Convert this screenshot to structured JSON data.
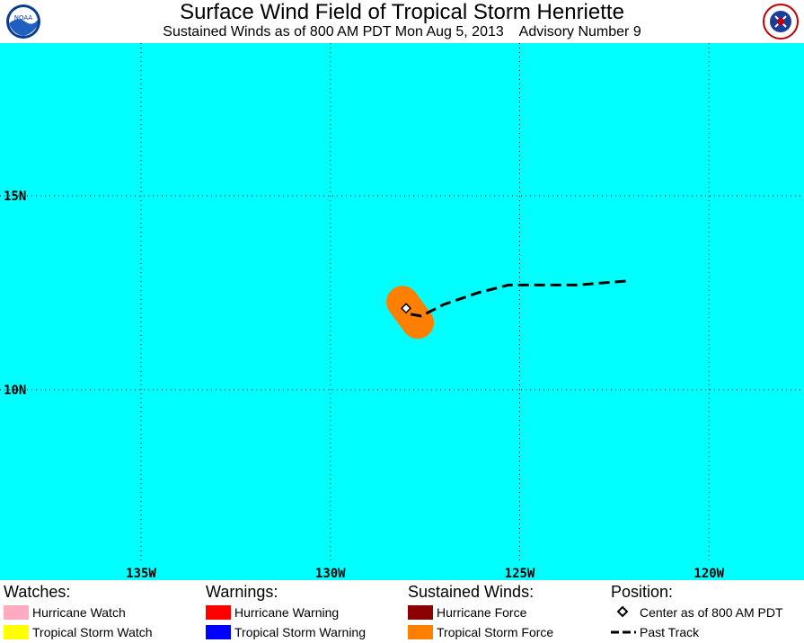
{
  "header": {
    "title": "Surface Wind Field of Tropical Storm Henriette",
    "subtitle": "Sustained Winds as of 800 AM PDT Mon Aug 5, 2013    Advisory Number 9",
    "left_logo": "noaa-logo",
    "right_logo": "national-weather-service-logo"
  },
  "map": {
    "background_color": "#00ffff",
    "lat_labels": [
      "15N",
      "10N"
    ],
    "lon_labels": [
      "135W",
      "130W",
      "125W",
      "120W"
    ],
    "grid": "dotted",
    "storm_center": {
      "lat": 12.1,
      "lon": -128.0
    },
    "tropical_storm_force_color": "#ff8000",
    "past_track": [
      {
        "lat": 12.8,
        "lon": -122.2
      },
      {
        "lat": 12.7,
        "lon": -123.5
      },
      {
        "lat": 12.7,
        "lon": -124.5
      },
      {
        "lat": 12.7,
        "lon": -125.3
      },
      {
        "lat": 12.5,
        "lon": -126.1
      },
      {
        "lat": 12.2,
        "lon": -127.0
      },
      {
        "lat": 11.9,
        "lon": -127.6
      },
      {
        "lat": 11.95,
        "lon": -127.9
      },
      {
        "lat": 12.1,
        "lon": -128.0
      }
    ]
  },
  "legend": {
    "watches": {
      "heading": "Watches:",
      "items": [
        {
          "label": "Hurricane Watch",
          "color": "#ffaac0"
        },
        {
          "label": "Tropical Storm Watch",
          "color": "#ffff00"
        }
      ]
    },
    "warnings": {
      "heading": "Warnings:",
      "items": [
        {
          "label": "Hurricane Warning",
          "color": "#ff0000"
        },
        {
          "label": "Tropical Storm Warning",
          "color": "#0000ff"
        }
      ]
    },
    "winds": {
      "heading": "Sustained Winds:",
      "items": [
        {
          "label": "Hurricane Force",
          "color": "#8b0000"
        },
        {
          "label": "Tropical Storm Force",
          "color": "#ff8000"
        }
      ]
    },
    "position": {
      "heading": "Position:",
      "center_label": "Center as of 800 AM PDT",
      "track_label": "Past Track"
    }
  }
}
